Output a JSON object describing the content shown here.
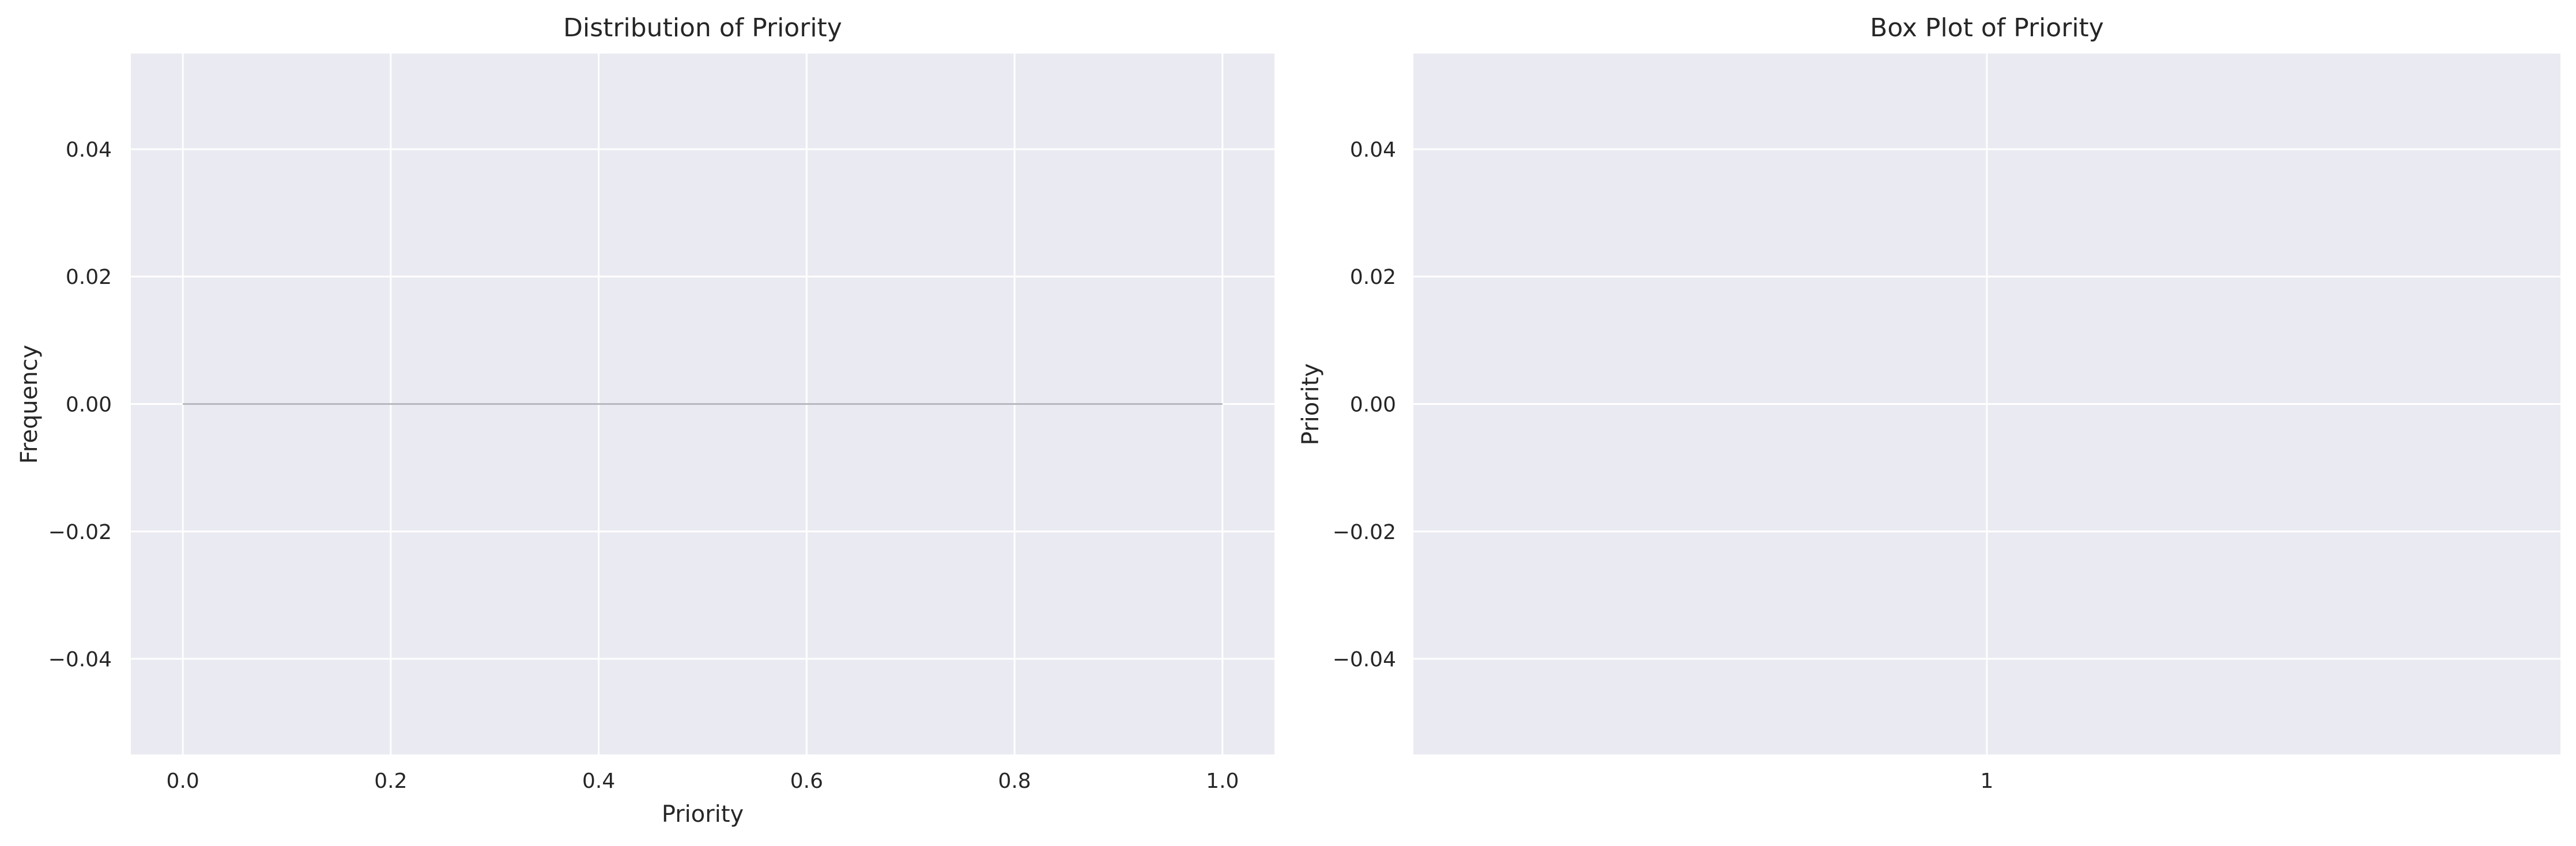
{
  "colors": {
    "plot_background": "#EAEAF2",
    "grid": "#FFFFFF",
    "text": "#262626",
    "empty_series_line": "#B8B8C0"
  },
  "chart_data": [
    {
      "type": "area",
      "title": "Distribution of Priority",
      "xlabel": "Priority",
      "ylabel": "Frequency",
      "xlim": [
        -0.05,
        1.05
      ],
      "ylim": [
        -0.055,
        0.055
      ],
      "grid": true,
      "x_ticks": [
        0.0,
        0.2,
        0.4,
        0.6,
        0.8,
        1.0
      ],
      "x_tick_labels": [
        "0.0",
        "0.2",
        "0.4",
        "0.6",
        "0.8",
        "1.0"
      ],
      "y_ticks": [
        -0.04,
        -0.02,
        0.0,
        0.02,
        0.04
      ],
      "y_tick_labels": [
        "−0.04",
        "−0.02",
        "0.00",
        "0.02",
        "0.04"
      ],
      "series": [
        {
          "x": [
            0.0,
            1.0
          ],
          "y": [
            0.0,
            0.0
          ]
        }
      ]
    },
    {
      "type": "box",
      "title": "Box Plot of Priority",
      "xlabel": "",
      "ylabel": "Priority",
      "ylim": [
        -0.055,
        0.055
      ],
      "grid": true,
      "categories": [
        "1"
      ],
      "y_ticks": [
        -0.04,
        -0.02,
        0.0,
        0.02,
        0.04
      ],
      "y_tick_labels": [
        "−0.04",
        "−0.02",
        "0.00",
        "0.02",
        "0.04"
      ],
      "series": []
    }
  ]
}
